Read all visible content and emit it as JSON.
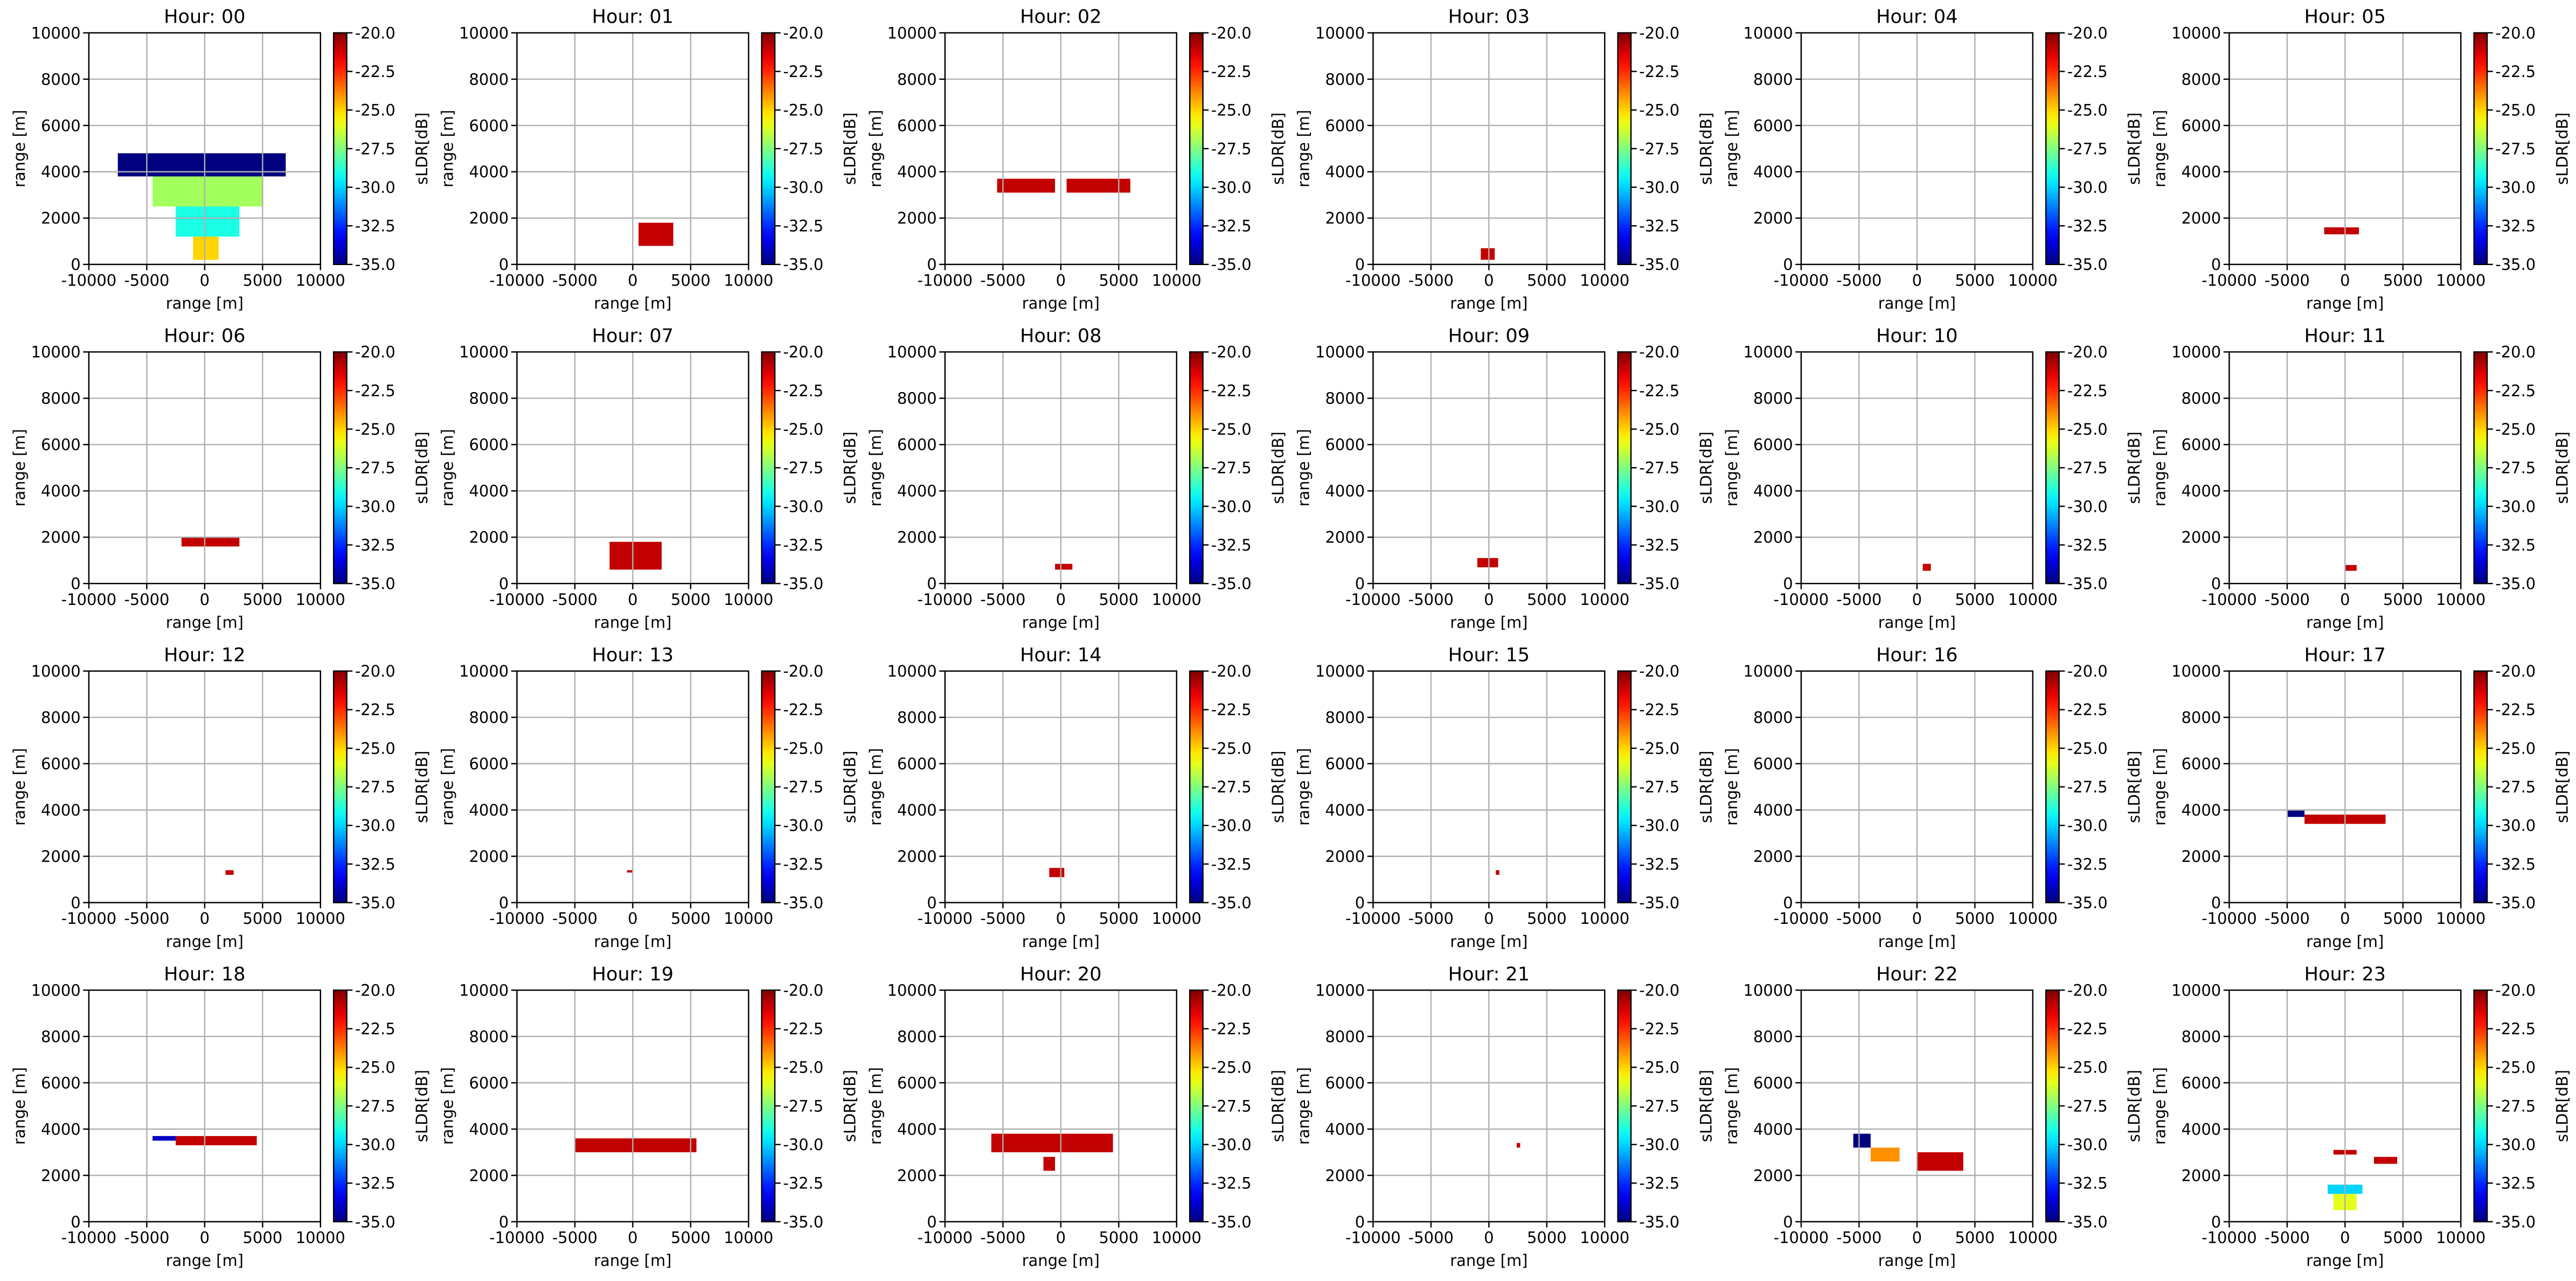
{
  "chart_data": {
    "type": "heatmap",
    "xlabel": "range [m]",
    "ylabel": "range [m]",
    "xlim": [
      -10000,
      10000
    ],
    "ylim": [
      0,
      10000
    ],
    "xticks": [
      -10000,
      -5000,
      0,
      5000,
      10000
    ],
    "yticks": [
      0,
      2000,
      4000,
      6000,
      8000,
      10000
    ],
    "grid": true,
    "colorbar": {
      "label": "sLDR[dB]",
      "cmap": "jet",
      "lim": [
        -35,
        -20
      ],
      "ticks": [
        {
          "value": -20,
          "label": "-20.0"
        },
        {
          "value": -22.5,
          "label": "-22.5"
        },
        {
          "value": -25,
          "label": "-25.0"
        },
        {
          "value": -27.5,
          "label": "-27.5"
        },
        {
          "value": -30,
          "label": "-30.0"
        },
        {
          "value": -32.5,
          "label": "-32.5"
        },
        {
          "value": -35,
          "label": "-35.0"
        }
      ]
    },
    "panels": [
      {
        "title": "Hour: 00",
        "patches": [
          {
            "x": [
              -7500,
              7000
            ],
            "y": [
              3800,
              4800
            ],
            "value": -35
          },
          {
            "x": [
              -4500,
              5000
            ],
            "y": [
              2500,
              3800
            ],
            "value": -27
          },
          {
            "x": [
              -2500,
              3000
            ],
            "y": [
              1200,
              2500
            ],
            "value": -29
          },
          {
            "x": [
              -1000,
              1200
            ],
            "y": [
              200,
              1200
            ],
            "value": -25
          }
        ]
      },
      {
        "title": "Hour: 01",
        "patches": [
          {
            "x": [
              500,
              3500
            ],
            "y": [
              800,
              1800
            ],
            "value": -21
          }
        ]
      },
      {
        "title": "Hour: 02",
        "patches": [
          {
            "x": [
              -5500,
              -500
            ],
            "y": [
              3100,
              3700
            ],
            "value": -21
          },
          {
            "x": [
              500,
              6000
            ],
            "y": [
              3100,
              3700
            ],
            "value": -21
          }
        ]
      },
      {
        "title": "Hour: 03",
        "patches": [
          {
            "x": [
              -700,
              500
            ],
            "y": [
              200,
              700
            ],
            "value": -21
          }
        ]
      },
      {
        "title": "Hour: 04",
        "patches": []
      },
      {
        "title": "Hour: 05",
        "patches": [
          {
            "x": [
              -1800,
              1200
            ],
            "y": [
              1300,
              1600
            ],
            "value": -21
          }
        ]
      },
      {
        "title": "Hour: 06",
        "patches": [
          {
            "x": [
              -2000,
              3000
            ],
            "y": [
              1600,
              2000
            ],
            "value": -21
          }
        ]
      },
      {
        "title": "Hour: 07",
        "patches": [
          {
            "x": [
              -2000,
              2500
            ],
            "y": [
              600,
              1800
            ],
            "value": -21
          }
        ]
      },
      {
        "title": "Hour: 08",
        "patches": [
          {
            "x": [
              -500,
              1000
            ],
            "y": [
              600,
              850
            ],
            "value": -21
          }
        ]
      },
      {
        "title": "Hour: 09",
        "patches": [
          {
            "x": [
              -1000,
              800
            ],
            "y": [
              700,
              1100
            ],
            "value": -21
          }
        ]
      },
      {
        "title": "Hour: 10",
        "patches": [
          {
            "x": [
              500,
              1200
            ],
            "y": [
              550,
              850
            ],
            "value": -21
          }
        ]
      },
      {
        "title": "Hour: 11",
        "patches": [
          {
            "x": [
              0,
              1000
            ],
            "y": [
              550,
              800
            ],
            "value": -21
          }
        ]
      },
      {
        "title": "Hour: 12",
        "patches": [
          {
            "x": [
              1800,
              2500
            ],
            "y": [
              1200,
              1400
            ],
            "value": -21
          }
        ]
      },
      {
        "title": "Hour: 13",
        "patches": [
          {
            "x": [
              -500,
              0
            ],
            "y": [
              1300,
              1400
            ],
            "value": -21
          }
        ]
      },
      {
        "title": "Hour: 14",
        "patches": [
          {
            "x": [
              -1000,
              300
            ],
            "y": [
              1100,
              1500
            ],
            "value": -21
          }
        ]
      },
      {
        "title": "Hour: 15",
        "patches": [
          {
            "x": [
              600,
              900
            ],
            "y": [
              1200,
              1400
            ],
            "value": -21
          }
        ]
      },
      {
        "title": "Hour: 16",
        "patches": []
      },
      {
        "title": "Hour: 17",
        "patches": [
          {
            "x": [
              -5000,
              -3500
            ],
            "y": [
              3700,
              4000
            ],
            "value": -35
          },
          {
            "x": [
              -3500,
              3500
            ],
            "y": [
              3400,
              3800
            ],
            "value": -21
          }
        ]
      },
      {
        "title": "Hour: 18",
        "patches": [
          {
            "x": [
              -4500,
              -2500
            ],
            "y": [
              3500,
              3700
            ],
            "value": -34
          },
          {
            "x": [
              -2500,
              4500
            ],
            "y": [
              3300,
              3700
            ],
            "value": -21
          }
        ]
      },
      {
        "title": "Hour: 19",
        "patches": [
          {
            "x": [
              -5000,
              5500
            ],
            "y": [
              3000,
              3600
            ],
            "value": -21
          }
        ]
      },
      {
        "title": "Hour: 20",
        "patches": [
          {
            "x": [
              -6000,
              4500
            ],
            "y": [
              3000,
              3800
            ],
            "value": -21
          },
          {
            "x": [
              -1500,
              -500
            ],
            "y": [
              2200,
              2800
            ],
            "value": -21
          }
        ]
      },
      {
        "title": "Hour: 21",
        "patches": [
          {
            "x": [
              2400,
              2700
            ],
            "y": [
              3200,
              3400
            ],
            "value": -21
          }
        ]
      },
      {
        "title": "Hour: 22",
        "patches": [
          {
            "x": [
              -5500,
              -4000
            ],
            "y": [
              3200,
              3800
            ],
            "value": -35
          },
          {
            "x": [
              -4000,
              -1500
            ],
            "y": [
              2600,
              3200
            ],
            "value": -24
          },
          {
            "x": [
              0,
              4000
            ],
            "y": [
              2200,
              3000
            ],
            "value": -21
          }
        ]
      },
      {
        "title": "Hour: 23",
        "patches": [
          {
            "x": [
              -1000,
              1000
            ],
            "y": [
              2900,
              3100
            ],
            "value": -21
          },
          {
            "x": [
              2500,
              4500
            ],
            "y": [
              2500,
              2800
            ],
            "value": -21
          },
          {
            "x": [
              -1500,
              1500
            ],
            "y": [
              1200,
              1600
            ],
            "value": -30
          },
          {
            "x": [
              -1000,
              1000
            ],
            "y": [
              500,
              1200
            ],
            "value": -26
          }
        ]
      }
    ]
  }
}
